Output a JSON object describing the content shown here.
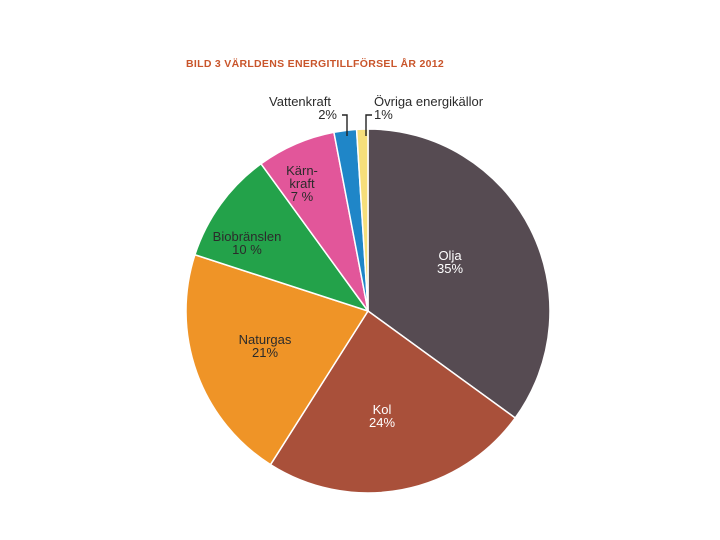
{
  "chart_data": {
    "type": "pie",
    "title": "BILD 3 VÄRLDENS ENERGITILLFÖRSEL ÅR 2012",
    "start_angle_deg": 0,
    "direction": "clockwise",
    "slices": [
      {
        "label": [
          "Olja"
        ],
        "value": 35,
        "value_text": "35%",
        "color": "#564b52",
        "text_color": "#ffffff"
      },
      {
        "label": [
          "Kol"
        ],
        "value": 24,
        "value_text": "24%",
        "color": "#a9503a",
        "text_color": "#ffffff"
      },
      {
        "label": [
          "Naturgas"
        ],
        "value": 21,
        "value_text": "21%",
        "color": "#ef9427",
        "text_color": "#2b2b2b"
      },
      {
        "label": [
          "Biobränslen"
        ],
        "value": 10,
        "value_text": "10 %",
        "color": "#23a24a",
        "text_color": "#2b2b2b"
      },
      {
        "label": [
          "Kärn-",
          "kraft"
        ],
        "value": 7,
        "value_text": "7 %",
        "color": "#e2569a",
        "text_color": "#2b2b2b"
      },
      {
        "label": [
          "Vattenkraft"
        ],
        "value": 2,
        "value_text": "2%",
        "color": "#1f86c8",
        "text_color": "#2b2b2b"
      },
      {
        "label": [
          "Övriga energikällor"
        ],
        "value": 1,
        "value_text": "1%",
        "color": "#f6de7a",
        "text_color": "#2b2b2b"
      }
    ]
  }
}
